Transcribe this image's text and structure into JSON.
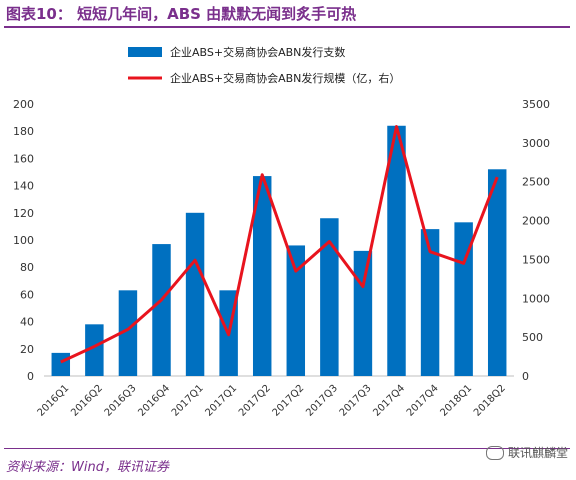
{
  "header": {
    "title": "图表10：  短短几年间，ABS 由默默无闻到炙手可热"
  },
  "footer": {
    "source": "资料来源：Wind，联讯证券",
    "watermark": "联讯麒麟堂"
  },
  "chart_data": {
    "type": "bar",
    "categories": [
      "2016Q1",
      "2016Q2",
      "2016Q3",
      "2016Q4",
      "2017Q1",
      "2017Q1",
      "2017Q2",
      "2017Q2",
      "2017Q3",
      "2017Q3",
      "2017Q4",
      "2017Q4",
      "2018Q1",
      "2018Q2"
    ],
    "series": [
      {
        "name": "企业ABS+交易商协会ABN发行支数",
        "type": "bar",
        "axis": "left",
        "color": "#0070c0",
        "values": [
          17,
          38,
          63,
          97,
          120,
          63,
          147,
          96,
          116,
          92,
          184,
          108,
          113,
          152
        ]
      },
      {
        "name": "企业ABS+交易商协会ABN发行规模（亿，右）",
        "type": "line",
        "axis": "right",
        "color": "#e8141e",
        "values": [
          180,
          380,
          600,
          980,
          1490,
          530,
          2590,
          1350,
          1730,
          1150,
          3210,
          1600,
          1450,
          2560
        ]
      }
    ],
    "y_left": {
      "lim": [
        0,
        200
      ],
      "ticks": [
        0,
        20,
        40,
        60,
        80,
        100,
        120,
        140,
        160,
        180,
        200
      ]
    },
    "y_right": {
      "lim": [
        0,
        3500
      ],
      "ticks": [
        0,
        500,
        1000,
        1500,
        2000,
        2500,
        3000,
        3500
      ]
    },
    "legend_position": "top",
    "grid": false
  }
}
